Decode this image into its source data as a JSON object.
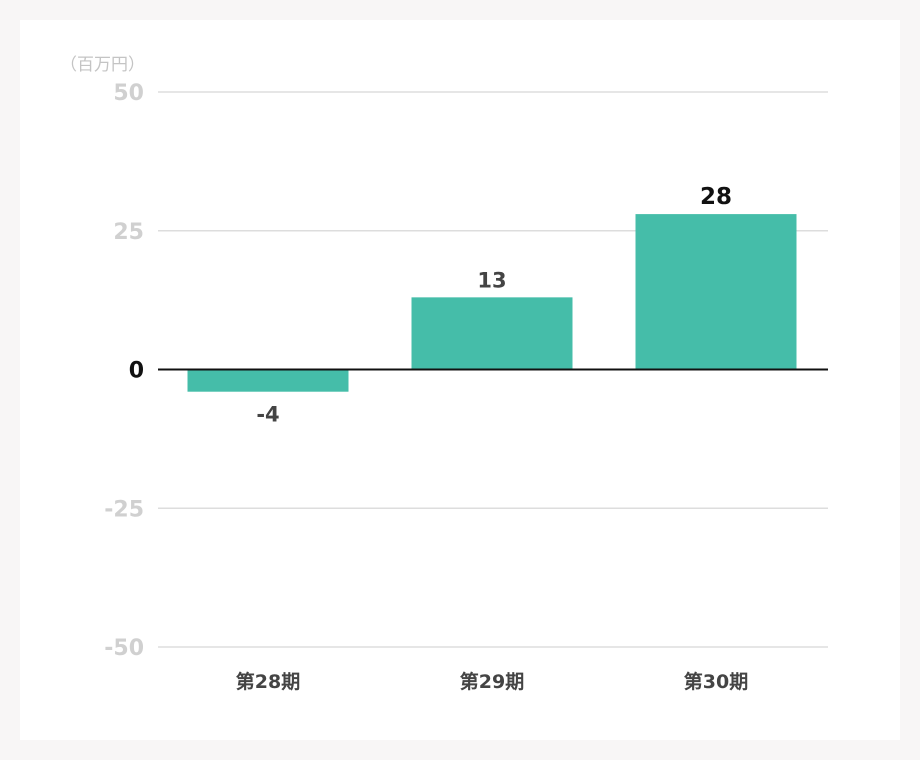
{
  "chart_data": {
    "type": "bar",
    "unit_label": "（百万円）",
    "categories": [
      "第28期",
      "第29期",
      "第30期"
    ],
    "values": [
      -4,
      13,
      28
    ],
    "data_labels": [
      "-4",
      "13",
      "28"
    ],
    "ylim": [
      -50,
      50
    ],
    "yticks": [
      50,
      25,
      0,
      -25,
      -50
    ],
    "ytick_labels": [
      "50",
      "25",
      "0",
      "-25",
      "-50"
    ],
    "bar_color": "#45bda9",
    "grid": true,
    "gridline_color": "#dddddd",
    "zero_line_color": "#111111"
  }
}
